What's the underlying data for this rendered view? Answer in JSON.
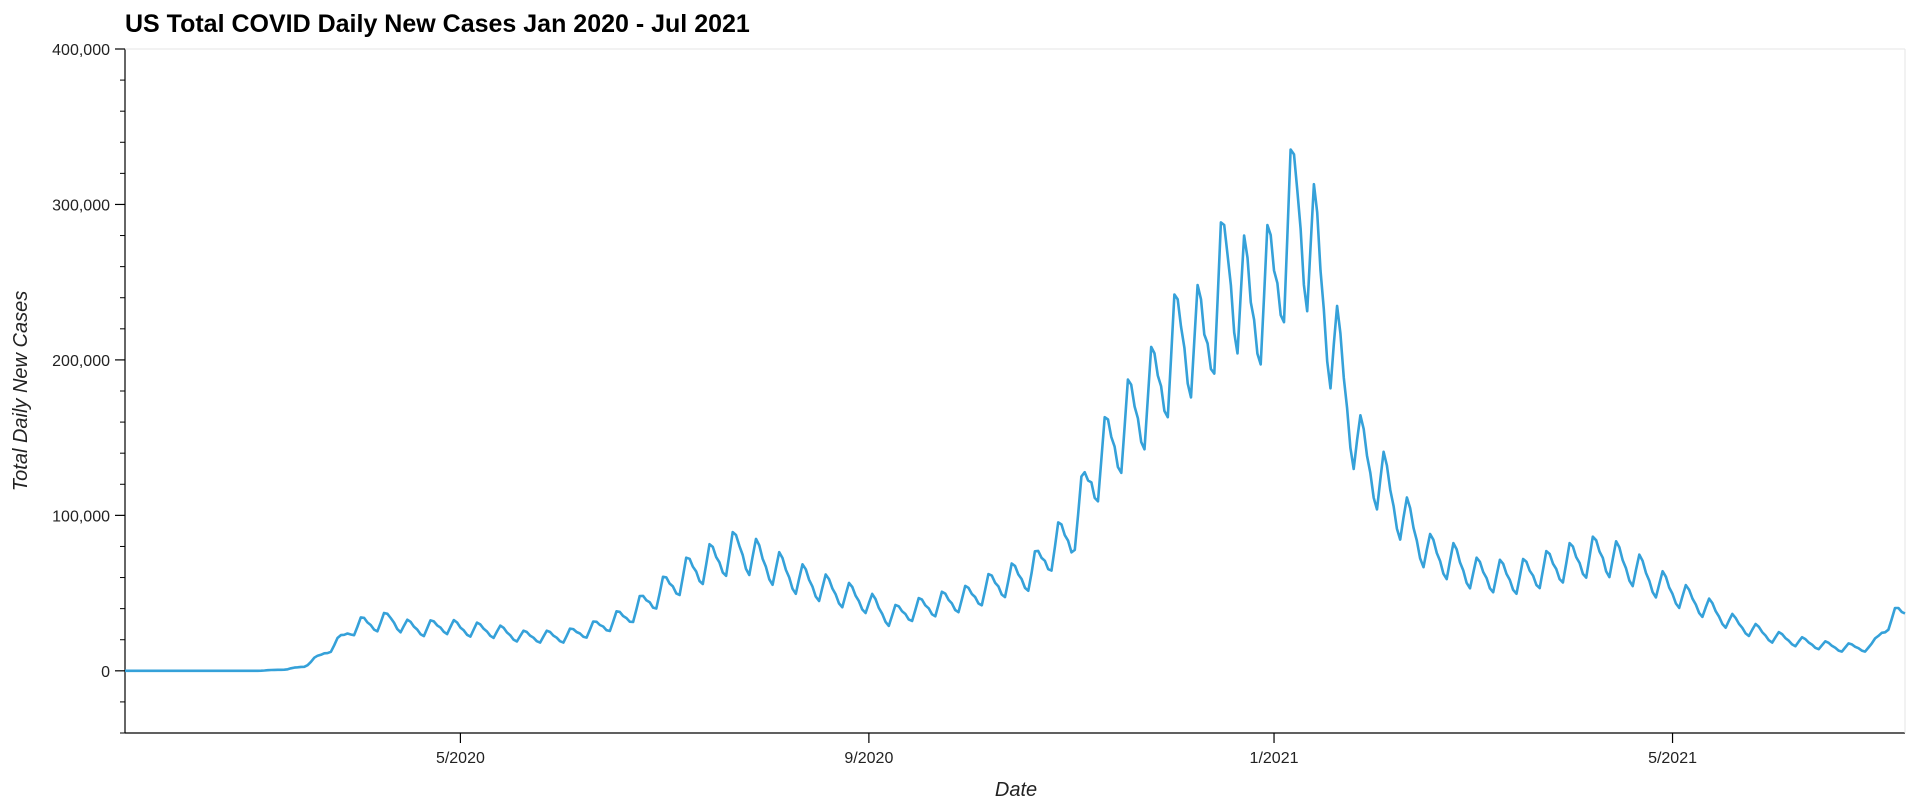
{
  "chart_data": {
    "type": "line",
    "title": "US Total COVID Daily New Cases Jan 2020 - Jul 2021",
    "xlabel": "Date",
    "ylabel": "Total Daily New Cases",
    "x_range": [
      "2020-01-21",
      "2021-07-10"
    ],
    "ylim": [
      -40000,
      400000
    ],
    "yticks": [
      0,
      100000,
      200000,
      300000,
      400000
    ],
    "ytick_labels": [
      "0",
      "100,000",
      "200,000",
      "300,000",
      "400,000"
    ],
    "xticks": [
      "2020-05-01",
      "2020-09-01",
      "2021-01-01",
      "2021-05-01"
    ],
    "xtick_labels": [
      "5/2020",
      "9/2020",
      "1/2021",
      "5/2021"
    ],
    "grid": false,
    "legend": "none",
    "series": [
      {
        "color": "#35a1d9",
        "x": [
          "2020-01-21",
          "2020-02-01",
          "2020-02-15",
          "2020-03-01",
          "2020-03-10",
          "2020-03-15",
          "2020-03-20",
          "2020-03-25",
          "2020-03-29",
          "2020-04-02",
          "2020-04-07",
          "2020-04-10",
          "2020-04-15",
          "2020-04-20",
          "2020-04-26",
          "2020-05-01",
          "2020-05-10",
          "2020-05-20",
          "2020-06-01",
          "2020-06-10",
          "2020-06-20",
          "2020-06-30",
          "2020-07-10",
          "2020-07-18",
          "2020-07-24",
          "2020-07-31",
          "2020-08-10",
          "2020-08-20",
          "2020-08-31",
          "2020-09-07",
          "2020-09-20",
          "2020-10-01",
          "2020-10-10",
          "2020-10-20",
          "2020-10-26",
          "2020-11-01",
          "2020-11-07",
          "2020-11-13",
          "2020-11-20",
          "2020-11-26",
          "2020-12-04",
          "2020-12-11",
          "2020-12-18",
          "2020-12-25",
          "2021-01-01",
          "2021-01-08",
          "2021-01-14",
          "2021-01-20",
          "2021-01-27",
          "2021-02-03",
          "2021-02-10",
          "2021-02-17",
          "2021-02-24",
          "2021-03-03",
          "2021-03-15",
          "2021-03-31",
          "2021-04-10",
          "2021-04-20",
          "2021-04-30",
          "2021-05-10",
          "2021-05-20",
          "2021-05-31",
          "2021-06-10",
          "2021-06-20",
          "2021-06-30",
          "2021-07-05",
          "2021-07-10"
        ],
        "y": [
          0,
          0,
          0,
          0,
          1000,
          3000,
          10000,
          18000,
          27000,
          30000,
          31000,
          33000,
          28000,
          27000,
          29000,
          27000,
          26000,
          22000,
          22000,
          27000,
          35000,
          50000,
          65000,
          72000,
          78000,
          70000,
          60000,
          52000,
          45000,
          35000,
          42000,
          47000,
          56000,
          63000,
          78000,
          88000,
          125000,
          146000,
          165000,
          180000,
          215000,
          210000,
          260000,
          230000,
          250000,
          300000,
          260000,
          200000,
          140000,
          120000,
          95000,
          75000,
          70000,
          62000,
          60000,
          70000,
          75000,
          65000,
          52000,
          42000,
          30000,
          22000,
          18000,
          15000,
          15000,
          32000,
          38000
        ]
      }
    ]
  }
}
